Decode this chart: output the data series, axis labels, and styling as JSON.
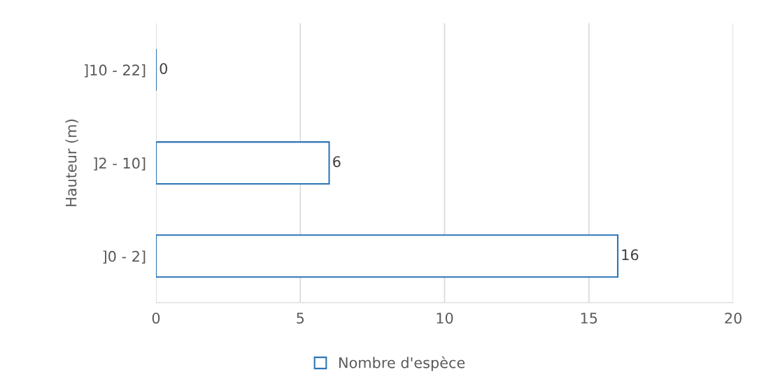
{
  "chart_data": {
    "type": "bar",
    "orientation": "horizontal",
    "ylabel": "Hauteur (m)",
    "categories": [
      "]10 - 22]",
      "]2 - 10]",
      "]0 - 2]"
    ],
    "series": [
      {
        "name": "Nombre d'espèce",
        "color": "#2e75b6",
        "values": [
          0,
          6,
          16
        ]
      }
    ],
    "xlim": [
      0,
      20
    ],
    "xticks": [
      0,
      5,
      10,
      15,
      20
    ],
    "grid": "x",
    "legend": "bottom",
    "data_labels": true
  }
}
